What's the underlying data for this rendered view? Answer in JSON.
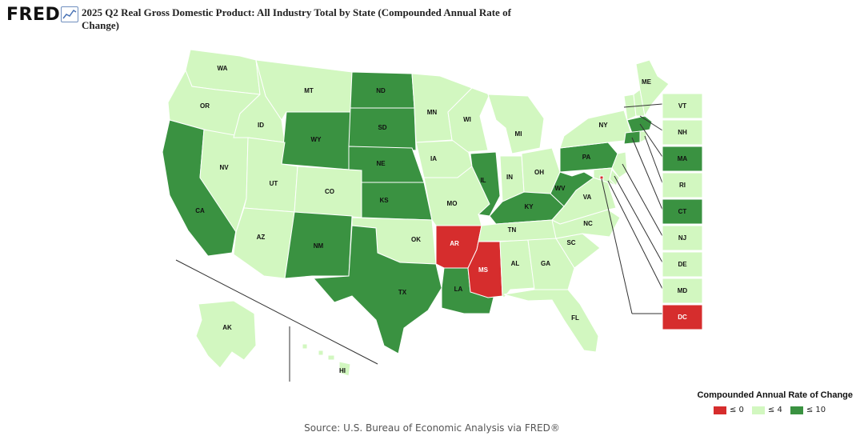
{
  "header": {
    "logo_text": "FRED",
    "title": "2025 Q2 Real Gross Domestic Product: All Industry Total by State (Compounded Annual Rate of Change)"
  },
  "colors": {
    "le0": "#d62d2d",
    "le4": "#d2f7c0",
    "le10": "#3a9241",
    "border": "#ffffff"
  },
  "map_data": {
    "type": "choropleth",
    "metric": "Compounded Annual Rate of Change",
    "bins": [
      {
        "key": "le0",
        "label": "≤ 0"
      },
      {
        "key": "le4",
        "label": "≤ 4"
      },
      {
        "key": "le10",
        "label": "≤ 10"
      }
    ],
    "states": {
      "WA": "le4",
      "OR": "le4",
      "CA": "le10",
      "NV": "le4",
      "ID": "le4",
      "MT": "le4",
      "WY": "le10",
      "UT": "le4",
      "CO": "le4",
      "AZ": "le4",
      "NM": "le10",
      "ND": "le10",
      "SD": "le10",
      "NE": "le10",
      "KS": "le10",
      "OK": "le4",
      "TX": "le10",
      "MN": "le4",
      "IA": "le4",
      "MO": "le4",
      "AR": "le0",
      "LA": "le10",
      "WI": "le4",
      "IL": "le10",
      "MI": "le4",
      "IN": "le4",
      "OH": "le4",
      "KY": "le10",
      "TN": "le4",
      "MS": "le0",
      "AL": "le4",
      "GA": "le4",
      "FL": "le4",
      "SC": "le4",
      "NC": "le4",
      "VA": "le4",
      "WV": "le10",
      "PA": "le10",
      "NY": "le4",
      "ME": "le4",
      "AK": "le4",
      "HI": "le4",
      "VT": "le4",
      "NH": "le4",
      "MA": "le10",
      "RI": "le4",
      "CT": "le10",
      "NJ": "le4",
      "DE": "le4",
      "MD": "le4",
      "DC": "le0"
    },
    "callout_order": [
      "VT",
      "NH",
      "MA",
      "RI",
      "CT",
      "NJ",
      "DE",
      "MD",
      "DC"
    ]
  },
  "legend": {
    "title": "Compounded Annual Rate of Change",
    "items": [
      "≤ 0",
      "≤ 4",
      "≤ 10"
    ]
  },
  "footer": {
    "source": "Source: U.S. Bureau of Economic Analysis via FRED®"
  }
}
